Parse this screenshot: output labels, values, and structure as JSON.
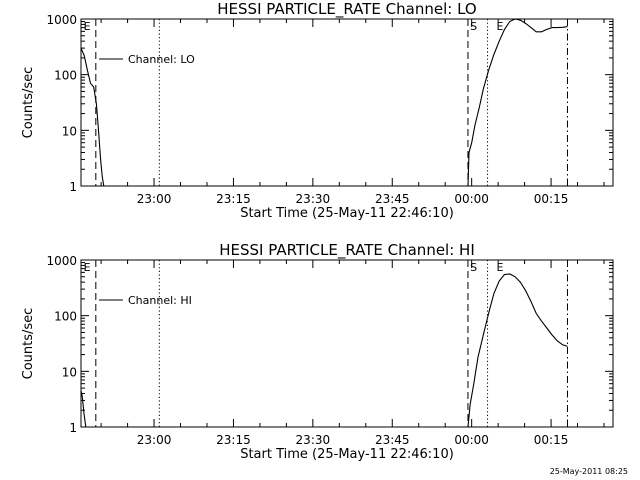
{
  "timestamp": "25-May-2011 08:25",
  "chart_data": [
    {
      "type": "line",
      "title": "HESSI PARTICLE_RATE Channel: LO",
      "xlabel": "Start Time (25-May-11 22:46:10)",
      "ylabel": "Counts/sec",
      "y_scale": "log",
      "ylim": [
        1,
        1000
      ],
      "yticks": [
        "1",
        "10",
        "100",
        "1000"
      ],
      "xlim_minutes": [
        0,
        100.5
      ],
      "xticks": [
        {
          "label": "23:00",
          "minutes": 13.8
        },
        {
          "label": "23:15",
          "minutes": 28.8
        },
        {
          "label": "23:30",
          "minutes": 43.8
        },
        {
          "label": "23:45",
          "minutes": 58.8
        },
        {
          "label": "00:00",
          "minutes": 73.8
        },
        {
          "label": "00:15",
          "minutes": 88.8
        }
      ],
      "legend": "Channel: LO",
      "marker_labels": [
        {
          "label": "E",
          "minutes": 0.5
        },
        {
          "label": "S",
          "minutes": 73.5
        },
        {
          "label": "E",
          "minutes": 78.5
        }
      ],
      "vlines": [
        {
          "minutes": 2.8,
          "style": "dashed"
        },
        {
          "minutes": 14.8,
          "style": "dotted"
        },
        {
          "minutes": 73.1,
          "style": "dashed"
        },
        {
          "minutes": 76.8,
          "style": "dotted"
        },
        {
          "minutes": 91.9,
          "style": "dashdot"
        }
      ],
      "series": [
        {
          "minutes": [
            0,
            0.6,
            1.2,
            1.8,
            2.4,
            2.9,
            3.3,
            3.7,
            4.0,
            4.3
          ],
          "values": [
            300,
            220,
            120,
            70,
            60,
            30,
            10,
            3,
            1.5,
            1
          ],
          "clip_below": true
        },
        {
          "minutes": [
            73.1,
            73.3,
            73.8,
            74.4,
            75.2,
            76.0,
            77.0,
            78.0,
            79.0,
            80.0,
            81.0,
            82.0,
            83.0,
            84.0,
            85.0,
            86.0,
            87.0,
            88.0,
            89.0,
            90.0,
            91.0,
            91.9
          ],
          "values": [
            1,
            4,
            6,
            12,
            25,
            55,
            120,
            230,
            400,
            650,
            900,
            1000,
            950,
            830,
            700,
            590,
            590,
            650,
            700,
            700,
            710,
            730
          ]
        }
      ]
    },
    {
      "type": "line",
      "title": "HESSI PARTICLE_RATE Channel: HI",
      "xlabel": "Start Time (25-May-11 22:46:10)",
      "ylabel": "Counts/sec",
      "y_scale": "log",
      "ylim": [
        1,
        1000
      ],
      "yticks": [
        "1",
        "10",
        "100",
        "1000"
      ],
      "xlim_minutes": [
        0,
        100.5
      ],
      "xticks": [
        {
          "label": "23:00",
          "minutes": 13.8
        },
        {
          "label": "23:15",
          "minutes": 28.8
        },
        {
          "label": "23:30",
          "minutes": 43.8
        },
        {
          "label": "23:45",
          "minutes": 58.8
        },
        {
          "label": "00:00",
          "minutes": 73.8
        },
        {
          "label": "00:15",
          "minutes": 88.8
        }
      ],
      "legend": "Channel: HI",
      "marker_labels": [
        {
          "label": "E",
          "minutes": 0.5
        },
        {
          "label": "S",
          "minutes": 73.5
        },
        {
          "label": "E",
          "minutes": 78.5
        }
      ],
      "vlines": [
        {
          "minutes": 2.8,
          "style": "dashed"
        },
        {
          "minutes": 14.8,
          "style": "dotted"
        },
        {
          "minutes": 73.1,
          "style": "dashed"
        },
        {
          "minutes": 76.8,
          "style": "dotted"
        },
        {
          "minutes": 91.9,
          "style": "dashdot"
        }
      ],
      "series": [
        {
          "minutes": [
            0,
            0.25,
            0.55,
            0.9
          ],
          "values": [
            4.5,
            3.5,
            1.8,
            1
          ],
          "clip_below": true
        },
        {
          "minutes": [
            73.1,
            73.5,
            74.2,
            75.0,
            76.0,
            77.0,
            78.0,
            79.0,
            80.0,
            81.0,
            82.0,
            83.0,
            84.0,
            85.0,
            86.0,
            87.0,
            88.0,
            89.0,
            90.0,
            91.0,
            91.9
          ],
          "values": [
            1,
            2.5,
            6,
            18,
            45,
            110,
            250,
            420,
            550,
            560,
            500,
            400,
            280,
            180,
            110,
            80,
            60,
            45,
            35,
            30,
            28
          ]
        }
      ]
    }
  ]
}
